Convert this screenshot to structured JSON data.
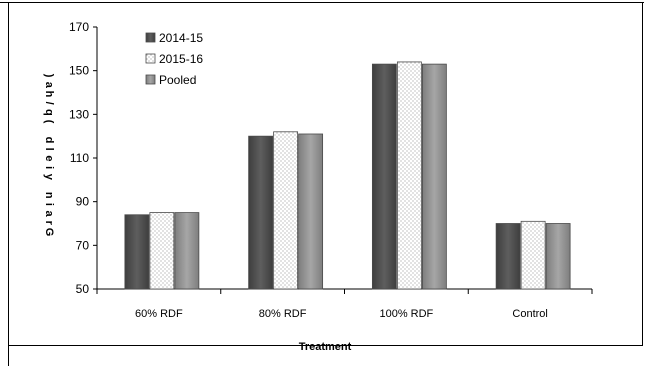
{
  "chart_data": {
    "type": "bar",
    "categories": [
      "60% RDF",
      "80% RDF",
      "100% RDF",
      "Control"
    ],
    "series": [
      {
        "name": "2014-15",
        "values": [
          84,
          120,
          153,
          80
        ],
        "color": "#5a5a5a",
        "pattern": "solid-dark"
      },
      {
        "name": "2015-16",
        "values": [
          85,
          122,
          154,
          81
        ],
        "color": "#ffffff",
        "pattern": "dotted"
      },
      {
        "name": "Pooled",
        "values": [
          85,
          121,
          153,
          80
        ],
        "color": "#9a9a9a",
        "pattern": "solid-grey"
      }
    ],
    "xlabel": "Treatment",
    "ylabel": "Grain yield (q/ha)",
    "ylim": [
      50,
      170
    ],
    "yticks": [
      50,
      70,
      90,
      110,
      130,
      150,
      170
    ],
    "grid": false,
    "legend_position": "top-left"
  }
}
